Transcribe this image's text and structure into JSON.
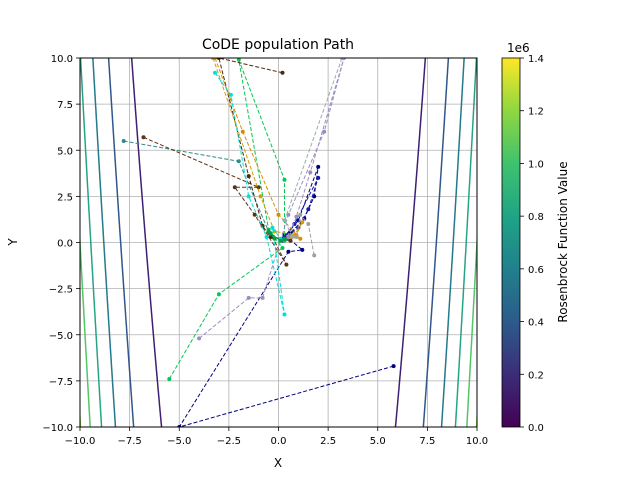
{
  "chart_data": {
    "type": "line",
    "title": "CoDE population Path",
    "xlabel": "X",
    "ylabel": "Y",
    "xlim": [
      -10,
      10
    ],
    "ylim": [
      -10,
      10
    ],
    "xticks": [
      "−10.0",
      "−7.5",
      "−5.0",
      "−2.5",
      "0.0",
      "2.5",
      "5.0",
      "7.5",
      "10.0"
    ],
    "yticks": [
      "−10.0",
      "−7.5",
      "−5.0",
      "−2.5",
      "0.0",
      "2.5",
      "5.0",
      "7.5",
      "10.0"
    ],
    "grid": true,
    "legend": "none",
    "contour": {
      "function": "Rosenbrock",
      "levels": [
        0.2,
        0.4,
        0.6,
        0.8,
        1.0,
        1.2
      ],
      "level_colors": [
        "#3e1f74",
        "#31568b",
        "#23798d",
        "#25a484",
        "#53c568",
        "#9cd93b"
      ]
    },
    "colorbar": {
      "label": "Rosenbrock Function Value",
      "offset_label": "1e6",
      "ticks": [
        "0.0",
        "0.2",
        "0.4",
        "0.6",
        "0.8",
        "1.0",
        "1.2",
        "1.4"
      ],
      "tick_values": [
        0,
        0.2,
        0.4,
        0.6,
        0.8,
        1.0,
        1.2,
        1.4
      ],
      "stops": [
        "#440154",
        "#3b2d78",
        "#2c5b8b",
        "#21808c",
        "#1fa486",
        "#3fc26e",
        "#8fd740",
        "#fde725"
      ]
    },
    "series": [
      {
        "color": "#000080",
        "x": [
          5.8,
          -5.0,
          0.5,
          1.2,
          0.3,
          0.6,
          1.3,
          1.8,
          2.0,
          1.0,
          0.2,
          0.4
        ],
        "y": [
          -6.7,
          -10.0,
          -0.5,
          -0.4,
          0.4,
          0.5,
          1.3,
          2.5,
          4.1,
          1.2,
          0.2,
          0.2
        ]
      },
      {
        "color": "#1a1aa8",
        "x": [
          0.2,
          1.0,
          1.5,
          2.0,
          0.8,
          0.3
        ],
        "y": [
          0.1,
          0.8,
          1.8,
          3.5,
          1.0,
          0.3
        ]
      },
      {
        "color": "#00c850",
        "x": [
          -5.5,
          -3.0,
          0.2,
          -0.5,
          -2.0,
          0.3,
          0.3,
          0.6
        ],
        "y": [
          -7.4,
          -2.8,
          -0.3,
          0.7,
          9.9,
          3.4,
          0.1,
          0.2
        ]
      },
      {
        "color": "#2e8b8b",
        "x": [
          -7.8,
          -2.0,
          -0.5,
          0.1,
          0.4,
          0.6
        ],
        "y": [
          5.5,
          4.4,
          0.6,
          0.1,
          0.2,
          0.1
        ]
      },
      {
        "color": "#5c3317",
        "x": [
          -6.8,
          -1.0,
          -2.2,
          -1.2,
          0.4,
          -0.3,
          0.6
        ],
        "y": [
          5.7,
          3.0,
          3.0,
          1.5,
          -1.2,
          0.3,
          0.1
        ]
      },
      {
        "color": "#4b2a10",
        "x": [
          0.2,
          -3.0,
          -1.5,
          -0.8,
          -0.4,
          0.3
        ],
        "y": [
          9.2,
          10.0,
          3.6,
          0.9,
          0.3,
          0.2
        ]
      },
      {
        "color": "#d4a000",
        "x": [
          -3.3,
          -0.9,
          -0.2,
          0.9,
          1.2,
          0.8
        ],
        "y": [
          10.0,
          2.5,
          0.6,
          0.4,
          1.1,
          0.4
        ]
      },
      {
        "color": "#d98c00",
        "x": [
          -3.2,
          -1.8,
          0.0,
          1.1,
          0.6
        ],
        "y": [
          10.0,
          6.0,
          1.5,
          0.2,
          0.3
        ]
      },
      {
        "color": "#9b8dc2",
        "x": [
          -4.0,
          -1.5,
          -0.8,
          0.5,
          2.3,
          3.3,
          1.6,
          0.9,
          0.5
        ],
        "y": [
          -5.2,
          -3.0,
          -3.0,
          1.5,
          6.0,
          10.0,
          3.8,
          1.4,
          0.3
        ]
      },
      {
        "color": "#8fb0b0",
        "x": [
          3.2,
          0.3,
          0.7
        ],
        "y": [
          10.0,
          1.2,
          0.3
        ]
      },
      {
        "color": "#a0a0a0",
        "x": [
          1.8,
          1.5,
          1.1,
          0.9
        ],
        "y": [
          -0.7,
          1.0,
          1.5,
          0.3
        ]
      },
      {
        "color": "#00e0d8",
        "x": [
          -3.2,
          -2.4,
          -1.5,
          -0.6,
          0.3,
          -0.3,
          0.1
        ],
        "y": [
          9.2,
          8.0,
          2.5,
          0.3,
          -3.9,
          0.8,
          0.2
        ]
      },
      {
        "color": "#00a040",
        "x": [
          -0.5,
          -0.2,
          -0.4,
          0.1,
          0.3
        ],
        "y": [
          0.6,
          0.2,
          0.5,
          0.1,
          0.2
        ]
      }
    ]
  }
}
